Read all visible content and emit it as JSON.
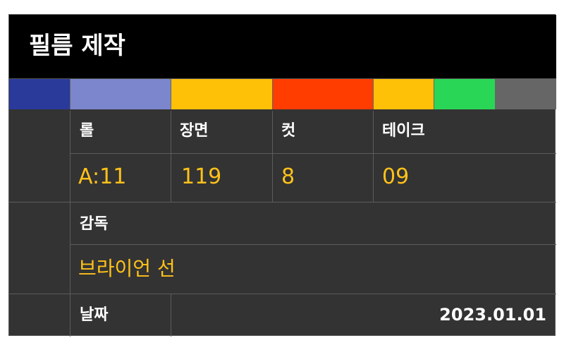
{
  "title": "필름 제작",
  "color_bars": [
    {
      "name": "blue",
      "color": "#2a3a9a"
    },
    {
      "name": "periwinkle",
      "color": "#7b86cc"
    },
    {
      "name": "amber",
      "color": "#ffc107"
    },
    {
      "name": "red-orange",
      "color": "#ff3d00"
    },
    {
      "name": "amber",
      "color": "#ffc107"
    },
    {
      "name": "green",
      "color": "#2ad655"
    },
    {
      "name": "gray",
      "color": "#666666"
    }
  ],
  "labels": {
    "roll": "롤",
    "scene": "장면",
    "cut": "컷",
    "take": "테이크",
    "director": "감독",
    "date": "날짜"
  },
  "values": {
    "roll": "A:11",
    "scene": "119",
    "cut": "8",
    "take": "09",
    "director": "브라이언 선",
    "date": "2023.01.01"
  }
}
